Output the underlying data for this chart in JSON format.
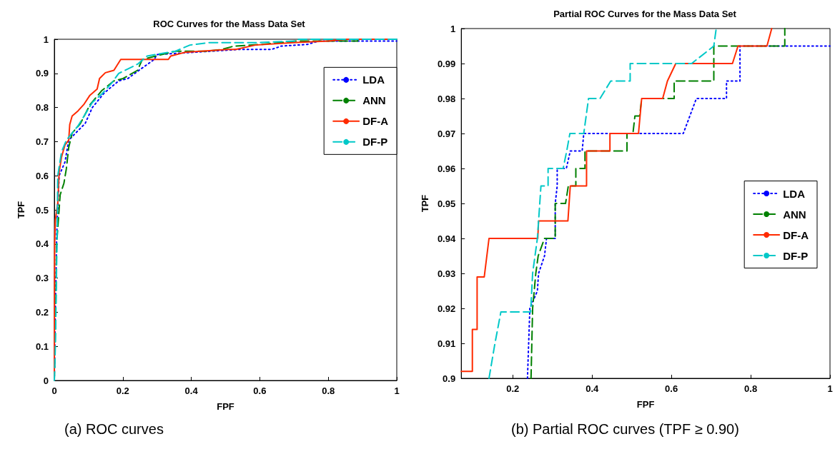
{
  "chart_data": [
    {
      "type": "line",
      "title": "ROC Curves for the Mass Data Set",
      "xlabel": "FPF",
      "ylabel": "TPF",
      "xlim": [
        0,
        1
      ],
      "ylim": [
        0,
        1
      ],
      "xticks": [
        0,
        0.2,
        0.4,
        0.6,
        0.8,
        1
      ],
      "yticks": [
        0,
        0.1,
        0.2,
        0.3,
        0.4,
        0.5,
        0.6,
        0.7,
        0.8,
        0.9,
        1
      ],
      "legend": "top right",
      "annotations": [
        "(a) ROC curves"
      ],
      "series": [
        {
          "name": "LDA",
          "color": "#0000ff",
          "line_style": "dotted",
          "x": [
            0,
            0.003,
            0.007,
            0.014,
            0.031,
            0.042,
            0.069,
            0.09,
            0.111,
            0.146,
            0.188,
            0.215,
            0.243,
            0.292,
            0.299,
            0.537,
            0.634,
            0.663,
            0.739,
            0.773,
            1
          ],
          "values": [
            0,
            0.2,
            0.43,
            0.6,
            0.64,
            0.704,
            0.732,
            0.753,
            0.8,
            0.843,
            0.878,
            0.885,
            0.906,
            0.941,
            0.955,
            0.97,
            0.97,
            0.98,
            0.985,
            0.995,
            0.995
          ]
        },
        {
          "name": "ANN",
          "color": "#008000",
          "line_style": "dashed",
          "x": [
            0,
            0.004,
            0.007,
            0.017,
            0.028,
            0.035,
            0.042,
            0.052,
            0.076,
            0.104,
            0.139,
            0.174,
            0.201,
            0.243,
            0.257,
            0.313,
            0.354,
            0.445,
            0.488,
            0.525,
            0.607,
            0.707,
            0.886,
            0.886,
            1
          ],
          "values": [
            0,
            0.2,
            0.404,
            0.544,
            0.578,
            0.62,
            0.683,
            0.725,
            0.753,
            0.808,
            0.85,
            0.878,
            0.885,
            0.909,
            0.941,
            0.955,
            0.965,
            0.965,
            0.97,
            0.98,
            0.985,
            0.995,
            0.995,
            1,
            1
          ]
        },
        {
          "name": "DF-A",
          "color": "#ff2a00",
          "line_style": "solid",
          "x": [
            0,
            0.001,
            0.003,
            0.01,
            0.014,
            0.021,
            0.031,
            0.042,
            0.045,
            0.052,
            0.069,
            0.087,
            0.104,
            0.125,
            0.132,
            0.149,
            0.174,
            0.194,
            0.333,
            0.34,
            0.382,
            0.507,
            0.53,
            0.587,
            0.697,
            0.8,
            0.853,
            1
          ],
          "values": [
            0,
            0.4,
            0.47,
            0.52,
            0.61,
            0.655,
            0.69,
            0.704,
            0.75,
            0.775,
            0.79,
            0.81,
            0.836,
            0.854,
            0.885,
            0.902,
            0.909,
            0.941,
            0.941,
            0.951,
            0.962,
            0.97,
            0.97,
            0.983,
            0.99,
            0.995,
            1,
            1
          ]
        },
        {
          "name": "DF-P",
          "color": "#00c8c8",
          "line_style": "dashed",
          "x": [
            0,
            0.003,
            0.008,
            0.01,
            0.021,
            0.035,
            0.052,
            0.069,
            0.09,
            0.111,
            0.139,
            0.167,
            0.188,
            0.243,
            0.271,
            0.354,
            0.396,
            0.45,
            0.593,
            0.71,
            0.713,
            1
          ],
          "values": [
            0,
            0.1,
            0.42,
            0.6,
            0.67,
            0.704,
            0.725,
            0.746,
            0.78,
            0.815,
            0.84,
            0.871,
            0.9,
            0.927,
            0.951,
            0.965,
            0.983,
            0.99,
            0.99,
            0.995,
            1,
            1
          ]
        }
      ]
    },
    {
      "type": "line",
      "title": "Partial ROC Curves for the Mass Data Set",
      "xlabel": "FPF",
      "ylabel": "TPF",
      "xlim": [
        0.07,
        1
      ],
      "ylim": [
        0.9,
        1
      ],
      "xticks": [
        0.2,
        0.4,
        0.6,
        0.8,
        1
      ],
      "yticks": [
        0.9,
        0.91,
        0.92,
        0.93,
        0.94,
        0.95,
        0.96,
        0.97,
        0.98,
        0.99,
        1
      ],
      "legend": "right",
      "annotations": [
        "(b) Partial ROC curves (TPF ≥ 0.90)"
      ],
      "series": [
        {
          "name": "LDA",
          "color": "#0000ff",
          "line_style": "dotted",
          "x": [
            0.237,
            0.24,
            0.243,
            0.262,
            0.265,
            0.28,
            0.285,
            0.307,
            0.307,
            0.312,
            0.312,
            0.335,
            0.345,
            0.375,
            0.379,
            0.63,
            0.663,
            0.739,
            0.739,
            0.773,
            0.773,
            1
          ],
          "values": [
            0.9,
            0.91,
            0.92,
            0.925,
            0.93,
            0.935,
            0.94,
            0.94,
            0.95,
            0.955,
            0.96,
            0.96,
            0.965,
            0.965,
            0.97,
            0.97,
            0.98,
            0.98,
            0.985,
            0.985,
            0.995,
            0.995
          ]
        },
        {
          "name": "ANN",
          "color": "#008000",
          "line_style": "dashed",
          "x": [
            0.246,
            0.25,
            0.258,
            0.264,
            0.28,
            0.307,
            0.307,
            0.333,
            0.34,
            0.359,
            0.359,
            0.382,
            0.382,
            0.445,
            0.488,
            0.488,
            0.503,
            0.508,
            0.52,
            0.525,
            0.607,
            0.607,
            0.707,
            0.707,
            0.886,
            0.886
          ],
          "values": [
            0.9,
            0.92,
            0.93,
            0.935,
            0.94,
            0.94,
            0.95,
            0.95,
            0.955,
            0.955,
            0.96,
            0.96,
            0.965,
            0.965,
            0.965,
            0.97,
            0.97,
            0.975,
            0.975,
            0.98,
            0.98,
            0.985,
            0.985,
            0.995,
            0.995,
            1
          ]
        },
        {
          "name": "DF-A",
          "color": "#ff2a00",
          "line_style": "solid",
          "x": [
            0.07,
            0.098,
            0.098,
            0.11,
            0.11,
            0.128,
            0.14,
            0.263,
            0.265,
            0.339,
            0.345,
            0.386,
            0.386,
            0.445,
            0.445,
            0.517,
            0.525,
            0.578,
            0.59,
            0.611,
            0.754,
            0.768,
            0.841,
            0.853
          ],
          "values": [
            0.902,
            0.902,
            0.914,
            0.914,
            0.929,
            0.929,
            0.94,
            0.94,
            0.945,
            0.945,
            0.955,
            0.955,
            0.965,
            0.965,
            0.97,
            0.97,
            0.98,
            0.98,
            0.985,
            0.99,
            0.99,
            0.995,
            0.995,
            1
          ]
        },
        {
          "name": "DF-P",
          "color": "#00c8c8",
          "line_style": "dashed",
          "x": [
            0.14,
            0.155,
            0.17,
            0.245,
            0.25,
            0.262,
            0.271,
            0.289,
            0.289,
            0.327,
            0.336,
            0.344,
            0.379,
            0.391,
            0.42,
            0.447,
            0.496,
            0.496,
            0.651,
            0.707,
            0.713
          ],
          "values": [
            0.9,
            0.91,
            0.919,
            0.919,
            0.93,
            0.94,
            0.955,
            0.955,
            0.96,
            0.96,
            0.965,
            0.97,
            0.97,
            0.98,
            0.98,
            0.985,
            0.985,
            0.99,
            0.99,
            0.995,
            1
          ]
        }
      ]
    }
  ]
}
